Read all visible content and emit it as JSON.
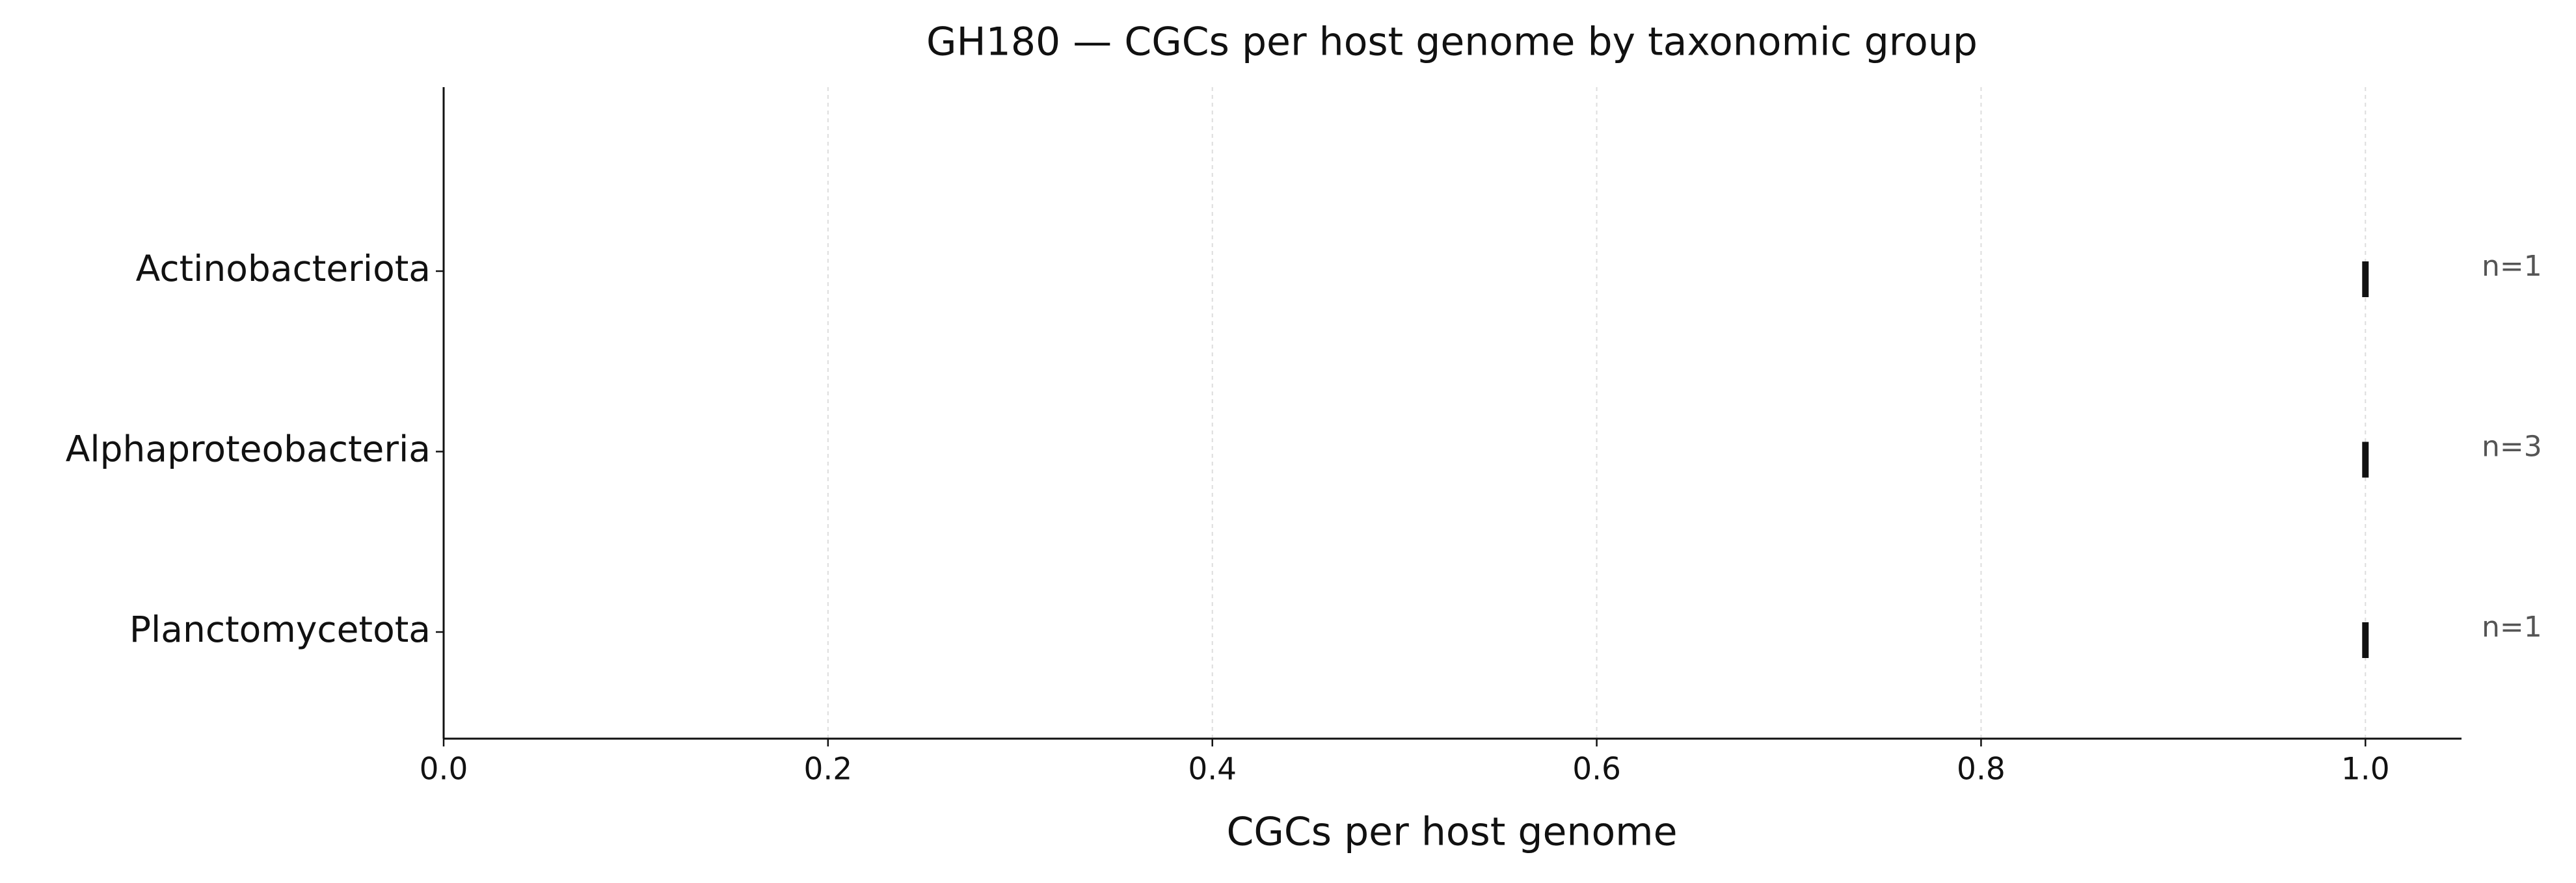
{
  "chart_data": {
    "type": "strip",
    "title": "GH180 — CGCs per host genome by taxonomic group",
    "x_label": "CGCs per host genome",
    "categories": [
      "Actinobacteriota",
      "Alphaproteobacteria",
      "Planctomycetota"
    ],
    "values": [
      1,
      1,
      1
    ],
    "annotations": [
      "n=1",
      "n=3",
      "n=1"
    ],
    "color": "#111111",
    "xlim": [
      0,
      1.05
    ],
    "xticks": [
      {
        "value": 0,
        "label": "0.0"
      },
      0.2,
      0.4,
      0.6,
      0.8,
      {
        "value": 1,
        "label": "1.0"
      }
    ],
    "grid": true
  }
}
